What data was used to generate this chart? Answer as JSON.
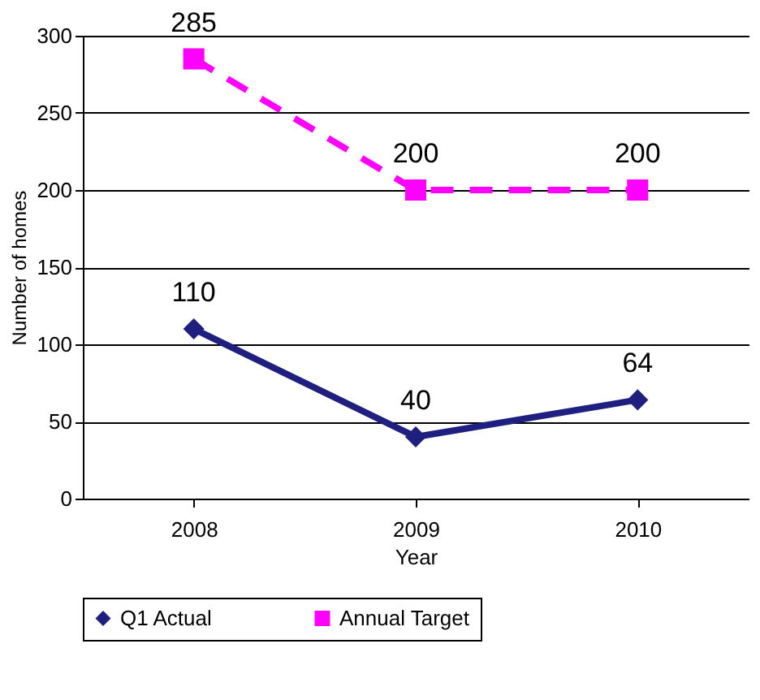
{
  "chart_data": {
    "type": "line",
    "xlabel": "Year",
    "ylabel": "Number of homes",
    "categories": [
      "2008",
      "2009",
      "2010"
    ],
    "series": [
      {
        "name": "Q1 Actual",
        "color": "#1f1f7f",
        "values": [
          110,
          40,
          64
        ],
        "marker": "diamond",
        "line_style": "solid"
      },
      {
        "name": "Annual Target",
        "color": "#ff00ff",
        "values": [
          285,
          200,
          200
        ],
        "marker": "square",
        "line_style": "dashed"
      }
    ],
    "ylim": [
      0,
      300
    ],
    "yticks": [
      0,
      50,
      100,
      150,
      200,
      250,
      300
    ],
    "grid": "y",
    "legend": "bottom",
    "data_labels": true
  }
}
